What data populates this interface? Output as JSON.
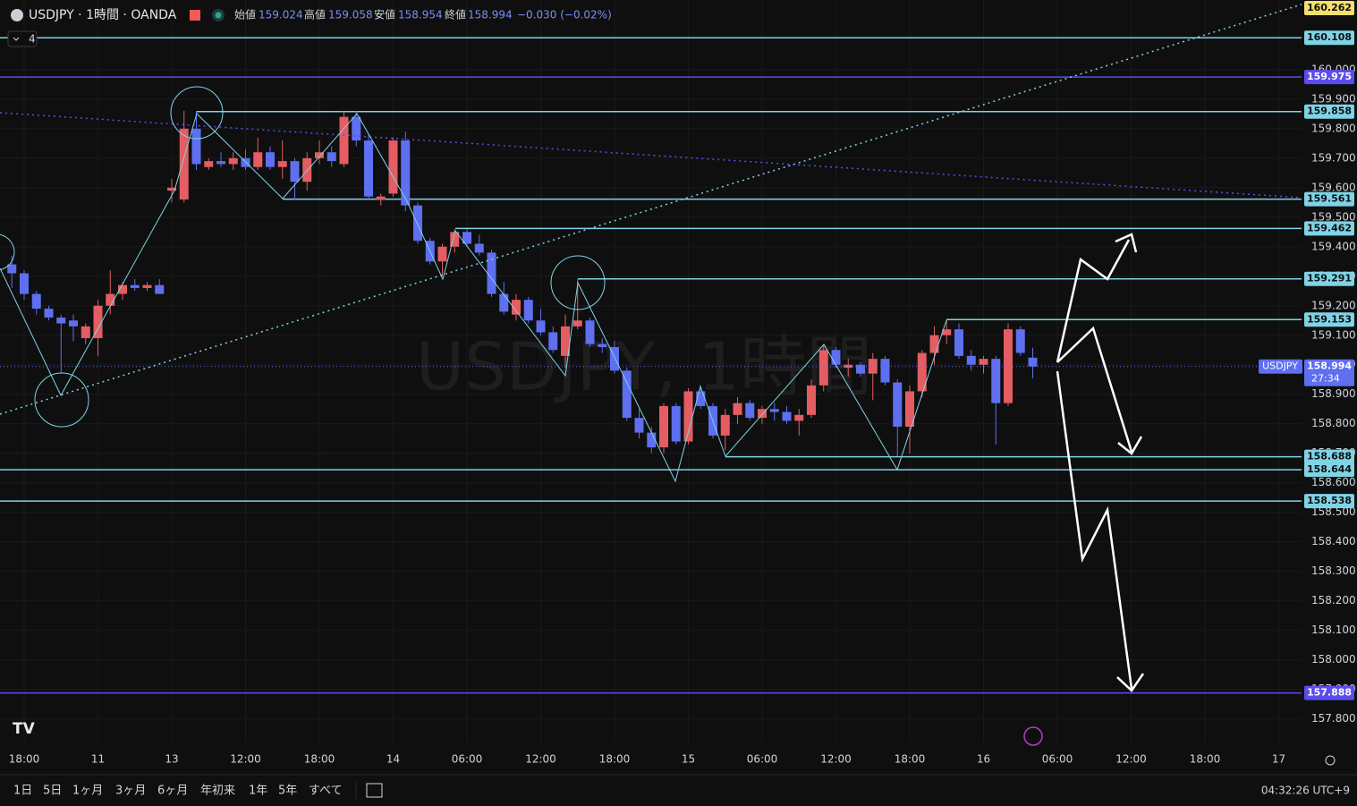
{
  "header": {
    "title": "USDJPY · 1時間 · OANDA",
    "open_label": "始値",
    "open": 159.024,
    "high_label": "高値",
    "high": 159.058,
    "low_label": "安値",
    "low": 158.954,
    "close_label": "終値",
    "close": 158.994,
    "change": "−0.030 (−0.02%)",
    "indicator_count": "4"
  },
  "watermark": "USDJPY, 1時間",
  "chart_data": {
    "type": "candlestick",
    "categories": [
      null,
      "18:00",
      null,
      null,
      null,
      null,
      null,
      "11",
      null,
      null,
      null,
      null,
      null,
      "13",
      null,
      null,
      null,
      null,
      null,
      "12:00",
      null,
      null,
      null,
      null,
      null,
      "18:00",
      null,
      null,
      null,
      null,
      null,
      "14",
      null,
      null,
      null,
      null,
      null,
      "06:00",
      null,
      null,
      null,
      null,
      null,
      "12:00",
      null,
      null,
      null,
      null,
      null,
      "18:00",
      null,
      null,
      null,
      null,
      null,
      "15",
      null,
      null,
      null,
      null,
      null,
      "06:00",
      null,
      null,
      null,
      null,
      null,
      "12:00",
      null,
      null,
      null,
      null,
      null,
      "18:00",
      null,
      null,
      null,
      null,
      null,
      "16",
      null,
      null,
      null,
      null,
      null,
      "06:00",
      null,
      null,
      null,
      null,
      null,
      "12:00",
      null,
      null,
      null,
      null,
      null,
      "18:00",
      null,
      null,
      null,
      null,
      null,
      "17",
      null
    ],
    "open": [
      159.34,
      159.31,
      159.24,
      159.19,
      159.16,
      159.15,
      159.09,
      159.09,
      159.2,
      159.24,
      159.27,
      159.26,
      159.27,
      159.59,
      159.56,
      159.8,
      159.67,
      159.69,
      159.68,
      159.7,
      159.67,
      159.72,
      159.67,
      159.69,
      159.62,
      159.7,
      159.72,
      159.68,
      159.84,
      159.76,
      159.56,
      159.58,
      159.76,
      159.54,
      159.42,
      159.35,
      159.4,
      159.45,
      159.41,
      159.38,
      159.24,
      159.17,
      159.22,
      159.15,
      159.11,
      159.03,
      159.13,
      159.15,
      159.07,
      159.06,
      158.98,
      158.82,
      158.77,
      158.72,
      158.86,
      158.74,
      158.91,
      158.86,
      158.76,
      158.83,
      158.87,
      158.82,
      158.85,
      158.84,
      158.81,
      158.83,
      158.93,
      159.05,
      158.99,
      159.0,
      158.97,
      159.02,
      158.94,
      158.79,
      158.91,
      159.04,
      159.1,
      159.12,
      159.03,
      159.0,
      159.02,
      158.87,
      159.12,
      159.024,
      null,
      null,
      null,
      null,
      null,
      null,
      null,
      null,
      null,
      null,
      null,
      null,
      null,
      null,
      null,
      null,
      null,
      null,
      null,
      null,
      null
    ],
    "high": [
      159.37,
      159.32,
      159.25,
      159.2,
      159.17,
      159.17,
      159.14,
      159.22,
      159.32,
      159.28,
      159.29,
      159.28,
      159.29,
      159.63,
      159.86,
      159.86,
      159.7,
      159.72,
      159.72,
      159.73,
      159.77,
      159.74,
      159.76,
      159.7,
      159.72,
      159.76,
      159.74,
      159.86,
      159.86,
      159.78,
      159.58,
      159.77,
      159.79,
      159.55,
      159.43,
      159.41,
      159.46,
      159.46,
      159.44,
      159.39,
      159.28,
      159.24,
      159.23,
      159.19,
      159.13,
      159.17,
      159.29,
      159.16,
      159.09,
      159.08,
      158.99,
      158.85,
      158.79,
      158.87,
      158.87,
      158.92,
      158.93,
      158.87,
      158.85,
      158.89,
      158.88,
      158.86,
      158.87,
      158.86,
      158.85,
      158.95,
      159.07,
      159.06,
      159.02,
      159.01,
      159.04,
      159.03,
      158.95,
      158.93,
      159.05,
      159.13,
      159.15,
      159.14,
      159.05,
      159.03,
      159.03,
      159.14,
      159.13,
      159.058,
      null,
      null,
      null,
      null,
      null,
      null,
      null,
      null,
      null,
      null,
      null,
      null,
      null,
      null,
      null,
      null,
      null,
      null,
      null,
      null,
      null
    ],
    "low": [
      159.26,
      159.22,
      159.17,
      159.15,
      158.97,
      159.08,
      159.07,
      159.03,
      159.17,
      159.22,
      159.25,
      159.25,
      159.24,
      159.55,
      159.55,
      159.66,
      159.66,
      159.67,
      159.66,
      159.66,
      159.66,
      159.66,
      159.63,
      159.56,
      159.59,
      159.68,
      159.67,
      159.67,
      159.74,
      159.56,
      159.54,
      159.57,
      159.52,
      159.41,
      159.34,
      159.3,
      159.38,
      159.4,
      159.37,
      159.23,
      159.17,
      159.15,
      159.14,
      159.1,
      159.04,
      158.99,
      159.12,
      159.06,
      159.04,
      158.97,
      158.81,
      158.75,
      158.7,
      158.7,
      158.73,
      158.73,
      158.85,
      158.75,
      158.71,
      158.8,
      158.81,
      158.8,
      158.81,
      158.8,
      158.76,
      158.82,
      158.91,
      158.99,
      158.96,
      158.96,
      158.88,
      158.93,
      158.69,
      158.7,
      158.89,
      159.0,
      159.07,
      159.02,
      158.98,
      158.97,
      158.73,
      158.86,
      159.03,
      158.954,
      null,
      null,
      null,
      null,
      null,
      null,
      null,
      null,
      null,
      null,
      null,
      null,
      null,
      null,
      null,
      null,
      null,
      null,
      null,
      null,
      null
    ],
    "close": [
      159.31,
      159.24,
      159.19,
      159.16,
      159.14,
      159.13,
      159.13,
      159.2,
      159.24,
      159.27,
      159.26,
      159.27,
      159.24,
      159.6,
      159.8,
      159.68,
      159.69,
      159.68,
      159.7,
      159.67,
      159.72,
      159.67,
      159.69,
      159.62,
      159.7,
      159.72,
      159.69,
      159.84,
      159.76,
      159.57,
      159.57,
      159.76,
      159.54,
      159.42,
      159.35,
      159.4,
      159.45,
      159.41,
      159.38,
      159.24,
      159.18,
      159.22,
      159.15,
      159.11,
      159.05,
      159.13,
      159.15,
      159.07,
      159.06,
      158.98,
      158.82,
      158.77,
      158.72,
      158.86,
      158.74,
      158.91,
      158.86,
      158.76,
      158.83,
      158.87,
      158.82,
      158.85,
      158.84,
      158.81,
      158.83,
      158.93,
      159.05,
      159.0,
      159.0,
      158.97,
      159.02,
      158.94,
      158.79,
      158.91,
      159.04,
      159.1,
      159.12,
      159.03,
      159.0,
      159.02,
      158.87,
      159.12,
      159.04,
      158.994,
      null,
      null,
      null,
      null,
      null,
      null,
      null,
      null,
      null,
      null,
      null,
      null,
      null,
      null,
      null,
      null,
      null,
      null,
      null,
      null,
      null
    ],
    "up_color": "#e35d63",
    "down_color": "#5e6ff0",
    "ylim": [
      157.72,
      160.236
    ],
    "yticks": [
      {
        "value": 157.8,
        "label": "157.800"
      },
      {
        "value": 157.9,
        "label": "157.900"
      },
      {
        "value": 158.0,
        "label": "158.000"
      },
      {
        "value": 158.1,
        "label": "158.100"
      },
      {
        "value": 158.2,
        "label": "158.200"
      },
      {
        "value": 158.3,
        "label": "158.300"
      },
      {
        "value": 158.4,
        "label": "158.400"
      },
      {
        "value": 158.5,
        "label": "158.500"
      },
      {
        "value": 158.6,
        "label": "158.600"
      },
      {
        "value": 158.7,
        "label": "158.700"
      },
      {
        "value": 158.8,
        "label": "158.800"
      },
      {
        "value": 158.9,
        "label": "158.900"
      },
      {
        "value": 159.0,
        "label": "159.000"
      },
      {
        "value": 159.1,
        "label": "159.100"
      },
      {
        "value": 159.2,
        "label": "159.200"
      },
      {
        "value": 159.3,
        "label": "159.300"
      },
      {
        "value": 159.4,
        "label": "159.400"
      },
      {
        "value": 159.5,
        "label": "159.500"
      },
      {
        "value": 159.6,
        "label": "159.600"
      },
      {
        "value": 159.7,
        "label": "159.700"
      },
      {
        "value": 159.8,
        "label": "159.800"
      },
      {
        "value": 159.9,
        "label": "159.900"
      },
      {
        "value": 160.0,
        "label": "160.000"
      }
    ],
    "grid": true,
    "levels": [
      {
        "value": 160.108,
        "color": "#7fd3e6"
      },
      {
        "value": 159.975,
        "color": "#5b4cf0"
      },
      {
        "value": 159.858,
        "color": "#7fd3e6"
      },
      {
        "value": 159.561,
        "color": "#7fd3e6"
      },
      {
        "value": 159.462,
        "color": "#7fd3e6"
      },
      {
        "value": 159.291,
        "color": "#7fd3e6"
      },
      {
        "value": 159.153,
        "color": "#7fd3e6"
      },
      {
        "value": 158.688,
        "color": "#7fd3e6"
      },
      {
        "value": 158.644,
        "color": "#7fd3e6"
      },
      {
        "value": 158.538,
        "color": "#7fd3e6"
      },
      {
        "value": 157.888,
        "color": "#5b4cf0"
      }
    ],
    "trend_label": {
      "value": 160.262,
      "color": "#f5e06a"
    },
    "last": {
      "symbol": "USDJPY",
      "value": 158.994,
      "countdown": "27:34",
      "color": "#5e6ff0"
    }
  },
  "footer": {
    "ranges": [
      "1日",
      "5日",
      "1ヶ月",
      "3ヶ月",
      "6ヶ月",
      "年初来",
      "1年",
      "5年",
      "すべて"
    ],
    "clock": "04:32:26 UTC+9"
  }
}
